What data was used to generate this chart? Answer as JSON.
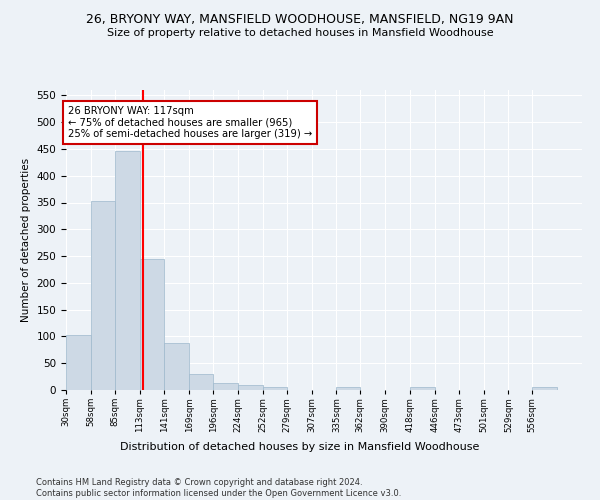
{
  "title": "26, BRYONY WAY, MANSFIELD WOODHOUSE, MANSFIELD, NG19 9AN",
  "subtitle": "Size of property relative to detached houses in Mansfield Woodhouse",
  "xlabel": "Distribution of detached houses by size in Mansfield Woodhouse",
  "ylabel": "Number of detached properties",
  "footer_line1": "Contains HM Land Registry data © Crown copyright and database right 2024.",
  "footer_line2": "Contains public sector information licensed under the Open Government Licence v3.0.",
  "bar_edges": [
    30,
    58,
    85,
    113,
    141,
    169,
    196,
    224,
    252,
    279,
    307,
    335,
    362,
    390,
    418,
    446,
    473,
    501,
    529,
    556,
    584
  ],
  "bar_values": [
    103,
    353,
    447,
    245,
    88,
    30,
    14,
    9,
    5,
    0,
    0,
    5,
    0,
    0,
    5,
    0,
    0,
    0,
    0,
    5
  ],
  "bar_color": "#cdd9e5",
  "bar_edge_color": "#9db8cc",
  "red_line_x": 117,
  "annotation_text": "26 BRYONY WAY: 117sqm\n← 75% of detached houses are smaller (965)\n25% of semi-detached houses are larger (319) →",
  "annotation_box_color": "#ffffff",
  "annotation_box_edge": "#cc0000",
  "ylim": [
    0,
    560
  ],
  "background_color": "#edf2f7",
  "grid_color": "#ffffff",
  "title_fontsize": 9,
  "subtitle_fontsize": 8,
  "footer_fontsize": 6
}
